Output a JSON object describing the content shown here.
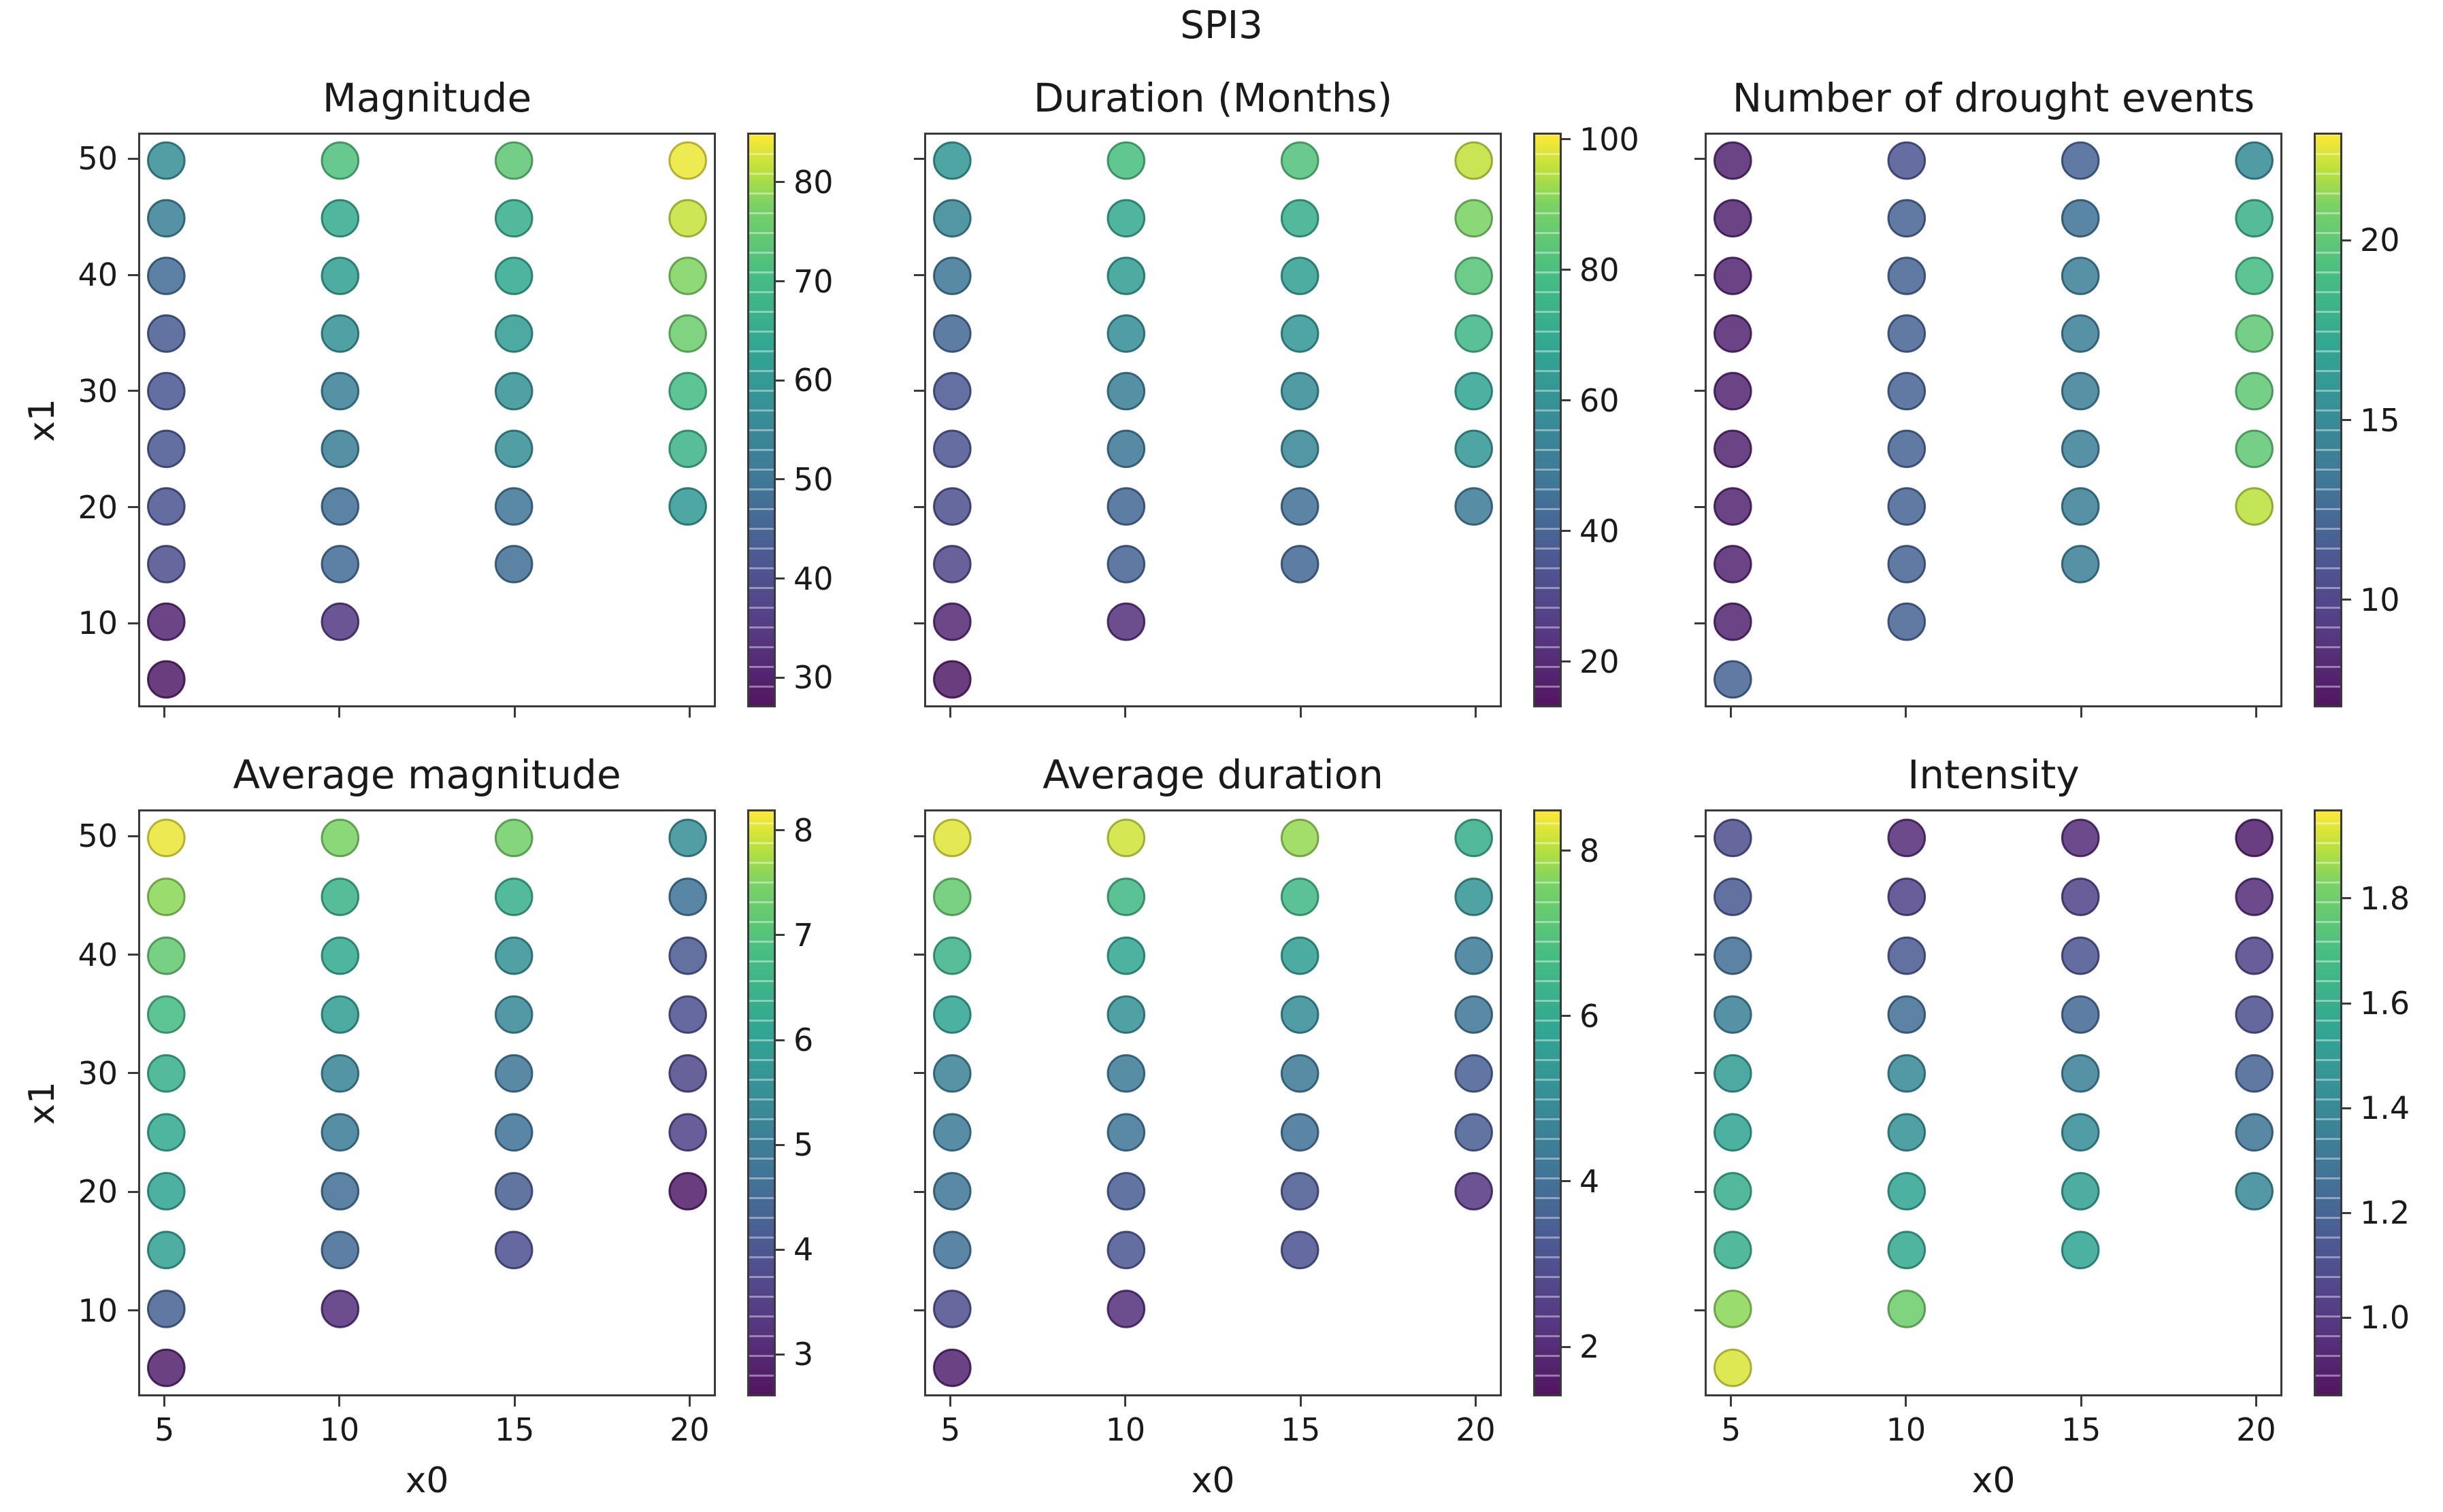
{
  "suptitle": "SPI3",
  "colormap": "viridis",
  "axis": {
    "xlabel": "x0",
    "ylabel": "x1",
    "x_ticks": [
      5,
      10,
      15,
      20
    ],
    "y_ticks": [
      10,
      20,
      30,
      40,
      50
    ],
    "xlim": [
      4.25,
      20.75
    ],
    "ylim": [
      2.75,
      52.25
    ]
  },
  "chart_data": [
    {
      "type": "scatter",
      "title": "Magnitude",
      "row": 0,
      "col": 0,
      "colorbar": {
        "vmin": 27,
        "vmax": 85,
        "ticks": [
          "30",
          "40",
          "50",
          "60",
          "70",
          "80"
        ],
        "tick_values": [
          30,
          40,
          50,
          60,
          70,
          80
        ]
      },
      "series": [
        {
          "x0": 5,
          "x1": [
            5,
            10,
            15,
            20,
            25,
            30,
            35,
            40,
            45,
            50
          ],
          "values": [
            29,
            31,
            40,
            41,
            42,
            42,
            43,
            47,
            53,
            57
          ]
        },
        {
          "x0": 10,
          "x1": [
            10,
            15,
            20,
            25,
            30,
            35,
            40,
            45,
            50
          ],
          "values": [
            35,
            47,
            48,
            52,
            53,
            58,
            62,
            65,
            72
          ]
        },
        {
          "x0": 15,
          "x1": [
            15,
            20,
            25,
            30,
            35,
            40,
            45,
            50
          ],
          "values": [
            48,
            50,
            57,
            58,
            61,
            64,
            66,
            74
          ]
        },
        {
          "x0": 20,
          "x1": [
            20,
            25,
            30,
            35,
            40,
            45,
            50
          ],
          "values": [
            60,
            68,
            70,
            76,
            78,
            82,
            84
          ]
        }
      ]
    },
    {
      "type": "scatter",
      "title": "Duration (Months)",
      "row": 0,
      "col": 1,
      "colorbar": {
        "vmin": 13,
        "vmax": 101,
        "ticks": [
          "20",
          "40",
          "60",
          "80",
          "100"
        ],
        "tick_values": [
          20,
          40,
          60,
          80,
          100
        ]
      },
      "series": [
        {
          "x0": 5,
          "x1": [
            5,
            10,
            15,
            20,
            25,
            30,
            35,
            40,
            45,
            50
          ],
          "values": [
            16,
            20,
            30,
            33,
            35,
            36,
            42,
            48,
            55,
            62
          ]
        },
        {
          "x0": 10,
          "x1": [
            10,
            15,
            20,
            25,
            30,
            35,
            40,
            45,
            50
          ],
          "values": [
            22,
            40,
            42,
            48,
            52,
            58,
            65,
            70,
            80
          ]
        },
        {
          "x0": 15,
          "x1": [
            15,
            20,
            25,
            30,
            35,
            40,
            45,
            50
          ],
          "values": [
            42,
            45,
            55,
            57,
            62,
            66,
            72,
            82
          ]
        },
        {
          "x0": 20,
          "x1": [
            20,
            25,
            30,
            35,
            40,
            45,
            50
          ],
          "values": [
            50,
            62,
            68,
            77,
            83,
            90,
            96
          ]
        }
      ]
    },
    {
      "type": "scatter",
      "title": "Number of drought events",
      "row": 0,
      "col": 2,
      "colorbar": {
        "vmin": 7,
        "vmax": 23,
        "ticks": [
          "10",
          "15",
          "20"
        ],
        "tick_values": [
          10,
          15,
          20
        ]
      },
      "series": [
        {
          "x0": 5,
          "x1": [
            5,
            10,
            15,
            20,
            25,
            30,
            35,
            40,
            45,
            50
          ],
          "values": [
            12,
            8,
            8,
            8,
            8,
            8,
            8,
            8,
            8,
            8
          ]
        },
        {
          "x0": 10,
          "x1": [
            10,
            15,
            20,
            25,
            30,
            35,
            40,
            45,
            50
          ],
          "values": [
            12,
            12,
            12,
            12,
            12,
            12,
            12,
            12,
            11
          ]
        },
        {
          "x0": 15,
          "x1": [
            15,
            20,
            25,
            30,
            35,
            40,
            45,
            50
          ],
          "values": [
            14,
            14,
            14,
            14,
            14,
            14,
            13,
            12
          ]
        },
        {
          "x0": 20,
          "x1": [
            20,
            25,
            30,
            35,
            40,
            45,
            50
          ],
          "values": [
            22,
            20,
            20,
            20,
            19,
            18,
            15
          ]
        }
      ]
    },
    {
      "type": "scatter",
      "title": "Average magnitude",
      "row": 1,
      "col": 0,
      "colorbar": {
        "vmin": 2.6,
        "vmax": 8.2,
        "ticks": [
          "3",
          "4",
          "5",
          "6",
          "7",
          "8"
        ],
        "tick_values": [
          3,
          4,
          5,
          6,
          7,
          8
        ]
      },
      "series": [
        {
          "x0": 5,
          "x1": [
            5,
            10,
            15,
            20,
            25,
            30,
            35,
            40,
            45,
            50
          ],
          "values": [
            2.9,
            4.3,
            6.0,
            6.1,
            6.2,
            6.4,
            6.8,
            7.2,
            7.6,
            8.1
          ]
        },
        {
          "x0": 10,
          "x1": [
            10,
            15,
            20,
            25,
            30,
            35,
            40,
            45,
            50
          ],
          "values": [
            3.2,
            4.5,
            4.6,
            5.0,
            5.2,
            5.9,
            6.2,
            6.5,
            7.5
          ]
        },
        {
          "x0": 15,
          "x1": [
            15,
            20,
            25,
            30,
            35,
            40,
            45,
            50
          ],
          "values": [
            3.9,
            4.2,
            4.7,
            4.8,
            5.3,
            5.6,
            6.4,
            7.4
          ]
        },
        {
          "x0": 20,
          "x1": [
            20,
            25,
            30,
            35,
            40,
            45,
            50
          ],
          "values": [
            2.8,
            3.6,
            3.7,
            3.9,
            4.1,
            4.7,
            5.5
          ]
        }
      ]
    },
    {
      "type": "scatter",
      "title": "Average duration",
      "row": 1,
      "col": 1,
      "colorbar": {
        "vmin": 1.4,
        "vmax": 8.5,
        "ticks": [
          "2",
          "4",
          "6",
          "8"
        ],
        "tick_values": [
          2,
          4,
          6,
          8
        ]
      },
      "series": [
        {
          "x0": 5,
          "x1": [
            5,
            10,
            15,
            20,
            25,
            30,
            35,
            40,
            45,
            50
          ],
          "values": [
            1.8,
            3.0,
            4.0,
            4.2,
            4.4,
            4.6,
            5.8,
            6.4,
            7.3,
            8.3
          ]
        },
        {
          "x0": 10,
          "x1": [
            10,
            15,
            20,
            25,
            30,
            35,
            40,
            45,
            50
          ],
          "values": [
            2.1,
            3.2,
            3.4,
            4.2,
            4.4,
            5.2,
            5.9,
            6.6,
            8.2
          ]
        },
        {
          "x0": 15,
          "x1": [
            15,
            20,
            25,
            30,
            35,
            40,
            45,
            50
          ],
          "values": [
            3.1,
            3.3,
            4.0,
            4.3,
            5.0,
            5.6,
            6.6,
            7.8
          ]
        },
        {
          "x0": 20,
          "x1": [
            20,
            25,
            30,
            35,
            40,
            45,
            50
          ],
          "values": [
            2.3,
            3.4,
            3.5,
            4.2,
            4.4,
            5.3,
            6.2
          ]
        }
      ]
    },
    {
      "type": "scatter",
      "title": "Intensity",
      "row": 1,
      "col": 2,
      "colorbar": {
        "vmin": 0.85,
        "vmax": 1.97,
        "ticks": [
          "1.0",
          "1.2",
          "1.4",
          "1.6",
          "1.8"
        ],
        "tick_values": [
          1.0,
          1.2,
          1.4,
          1.6,
          1.8
        ]
      },
      "series": [
        {
          "x0": 5,
          "x1": [
            5,
            10,
            15,
            20,
            25,
            30,
            35,
            40,
            45,
            50
          ],
          "values": [
            1.93,
            1.85,
            1.6,
            1.6,
            1.55,
            1.5,
            1.35,
            1.25,
            1.15,
            1.1
          ]
        },
        {
          "x0": 10,
          "x1": [
            10,
            15,
            20,
            25,
            30,
            35,
            40,
            45,
            50
          ],
          "values": [
            1.8,
            1.58,
            1.55,
            1.45,
            1.4,
            1.25,
            1.15,
            1.05,
            0.95
          ]
        },
        {
          "x0": 15,
          "x1": [
            15,
            20,
            25,
            30,
            35,
            40,
            45,
            50
          ],
          "values": [
            1.55,
            1.52,
            1.42,
            1.35,
            1.22,
            1.12,
            1.05,
            0.95
          ]
        },
        {
          "x0": 20,
          "x1": [
            20,
            25,
            30,
            35,
            40,
            45,
            50
          ],
          "values": [
            1.4,
            1.28,
            1.2,
            1.1,
            1.05,
            0.95,
            0.9
          ]
        }
      ]
    }
  ]
}
